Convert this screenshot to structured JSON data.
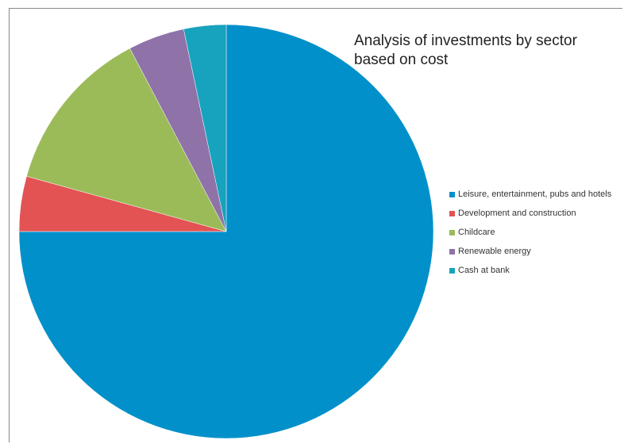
{
  "chart_data": {
    "type": "pie",
    "title": "Analysis of investments by sector based on cost",
    "legend_position": "right",
    "start_angle": "top",
    "direction": "clockwise",
    "slices": [
      {
        "label": "Leisure, entertainment, pubs and hotels",
        "value": 75.0,
        "color": "#0290CA"
      },
      {
        "label": "Development and construction",
        "value": 4.3,
        "color": "#E35353"
      },
      {
        "label": "Childcare",
        "value": 13.0,
        "color": "#9BBB59"
      },
      {
        "label": "Renewable energy",
        "value": 4.4,
        "color": "#8E72A8"
      },
      {
        "label": "Cash at bank",
        "value": 3.3,
        "color": "#17A2BD"
      }
    ]
  }
}
